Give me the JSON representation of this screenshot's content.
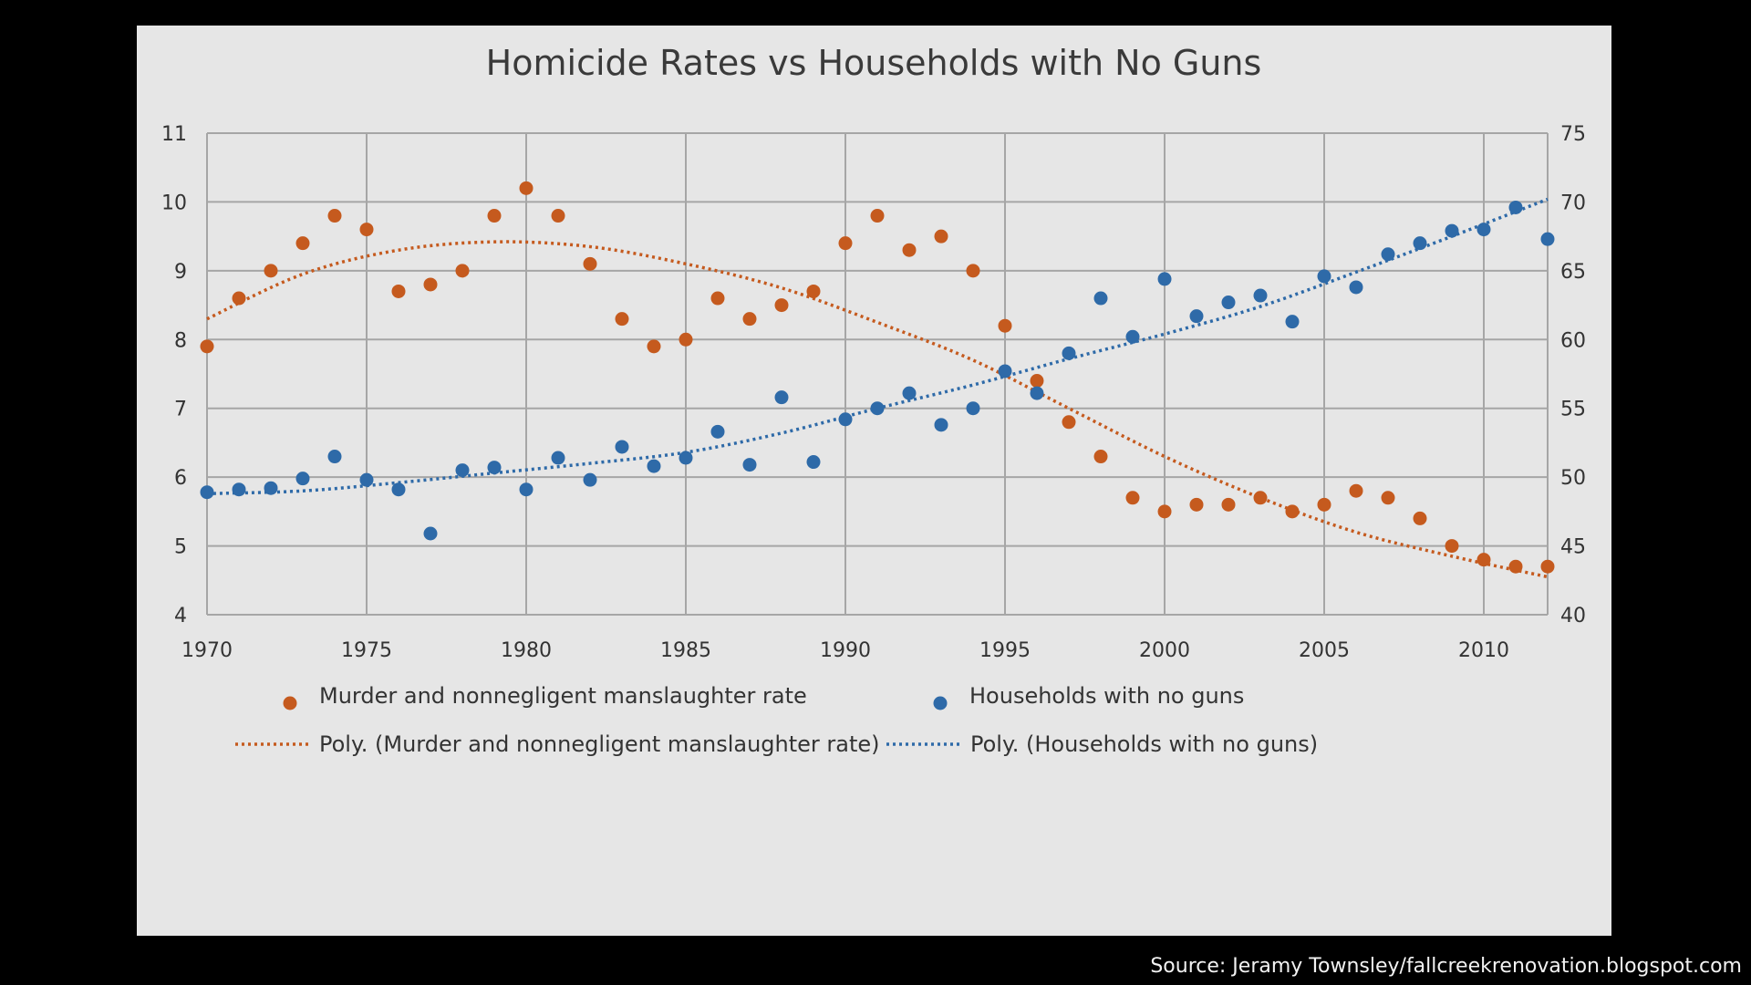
{
  "source_text": "Source: Jeramy Townsley/fallcreekrenovation.blogspot.com",
  "chart_data": {
    "type": "scatter",
    "title": "Homicide Rates vs Households with No Guns",
    "xlim": [
      1970,
      2012
    ],
    "x_ticks": [
      1970,
      1975,
      1980,
      1985,
      1990,
      1995,
      2000,
      2005,
      2010
    ],
    "y_left": {
      "range": [
        4,
        11
      ],
      "ticks": [
        4,
        5,
        6,
        7,
        8,
        9,
        10,
        11
      ]
    },
    "y_right": {
      "range": [
        40,
        75
      ],
      "ticks": [
        40,
        45,
        50,
        55,
        60,
        65,
        70,
        75
      ]
    },
    "grid": true,
    "legend_position": "bottom",
    "series": [
      {
        "name": "Murder and nonnegligent manslaughter rate",
        "axis": "left",
        "color": "#c55a1e",
        "x": [
          1970,
          1971,
          1972,
          1973,
          1974,
          1975,
          1976,
          1977,
          1978,
          1979,
          1980,
          1981,
          1982,
          1983,
          1984,
          1985,
          1986,
          1987,
          1988,
          1989,
          1990,
          1991,
          1992,
          1993,
          1994,
          1995,
          1996,
          1997,
          1998,
          1999,
          2000,
          2001,
          2002,
          2003,
          2004,
          2005,
          2006,
          2007,
          2008,
          2009,
          2010,
          2011,
          2012
        ],
        "y": [
          7.9,
          8.6,
          9.0,
          9.4,
          9.8,
          9.6,
          8.7,
          8.8,
          9.0,
          9.8,
          10.2,
          9.8,
          9.1,
          8.3,
          7.9,
          8.0,
          8.6,
          8.3,
          8.5,
          8.7,
          9.4,
          9.8,
          9.3,
          9.5,
          9.0,
          8.2,
          7.4,
          6.8,
          6.3,
          5.7,
          5.5,
          5.6,
          5.6,
          5.7,
          5.5,
          5.6,
          5.8,
          5.7,
          5.4,
          5.0,
          4.8,
          4.7,
          4.7
        ]
      },
      {
        "name": "Households with no guns",
        "axis": "right",
        "color": "#2e6aa8",
        "x": [
          1970,
          1971,
          1972,
          1973,
          1974,
          1975,
          1976,
          1977,
          1978,
          1979,
          1980,
          1981,
          1982,
          1983,
          1984,
          1985,
          1986,
          1987,
          1988,
          1989,
          1990,
          1991,
          1992,
          1993,
          1994,
          1995,
          1996,
          1997,
          1998,
          1999,
          2000,
          2001,
          2002,
          2003,
          2004,
          2005,
          2006,
          2007,
          2008,
          2009,
          2010,
          2011,
          2012
        ],
        "y": [
          48.9,
          49.1,
          49.2,
          49.9,
          51.5,
          49.8,
          49.1,
          45.9,
          50.5,
          50.7,
          49.1,
          51.4,
          49.8,
          52.2,
          50.8,
          51.4,
          53.3,
          50.9,
          55.8,
          51.1,
          54.2,
          55.0,
          56.1,
          53.8,
          55.0,
          57.7,
          56.1,
          59.0,
          63.0,
          60.2,
          64.4,
          61.7,
          62.7,
          63.2,
          61.3,
          64.6,
          63.8,
          66.2,
          67.0,
          67.9,
          68.0,
          69.6,
          67.3
        ]
      },
      {
        "name": "Poly. (Murder and nonnegligent manslaughter rate)",
        "axis": "left",
        "color": "#c55a1e",
        "trendline": true,
        "x": [
          1970,
          1973,
          1976,
          1979,
          1982,
          1985,
          1988,
          1991,
          1994,
          1997,
          2000,
          2003,
          2006,
          2009,
          2012
        ],
        "y": [
          8.3,
          8.95,
          9.3,
          9.42,
          9.35,
          9.1,
          8.75,
          8.25,
          7.7,
          7.0,
          6.3,
          5.7,
          5.2,
          4.85,
          4.55
        ]
      },
      {
        "name": "Poly. (Households with no guns)",
        "axis": "right",
        "color": "#2e6aa8",
        "trendline": true,
        "x": [
          1970,
          1973,
          1976,
          1979,
          1982,
          1985,
          1988,
          1991,
          1994,
          1997,
          2000,
          2003,
          2006,
          2009,
          2012
        ],
        "y": [
          48.8,
          49.0,
          49.6,
          50.3,
          51.0,
          51.8,
          53.2,
          55.0,
          56.7,
          58.6,
          60.4,
          62.4,
          64.9,
          67.5,
          70.2
        ]
      }
    ]
  }
}
